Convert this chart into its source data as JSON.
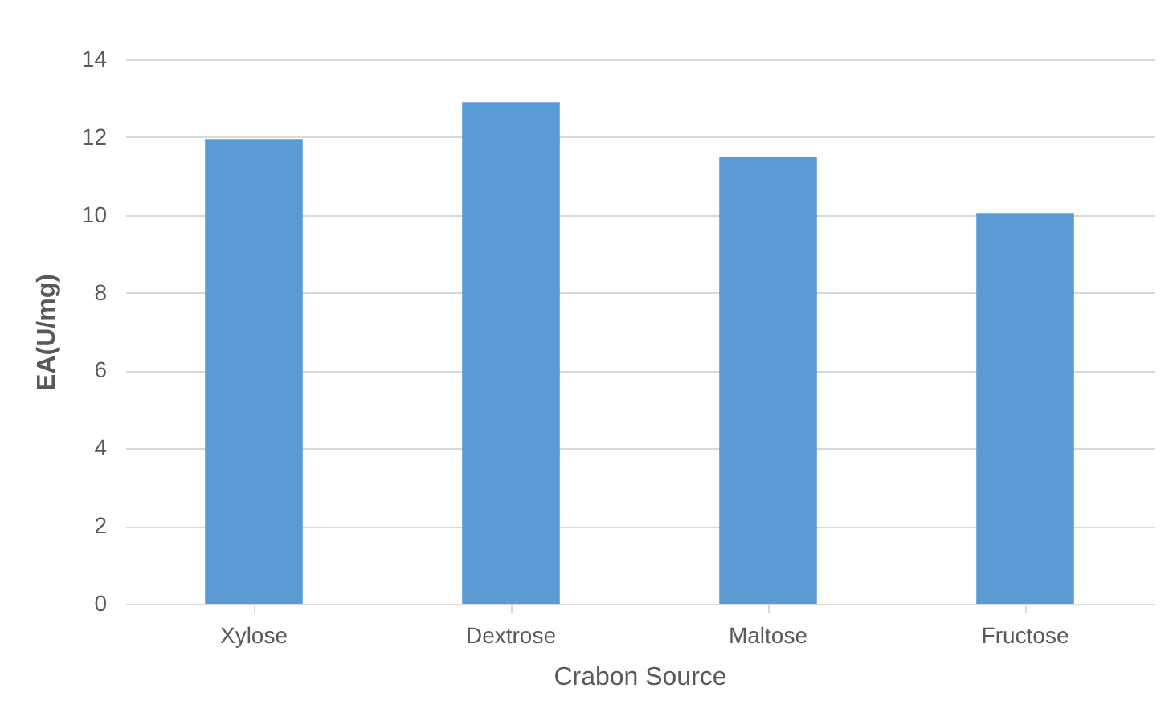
{
  "chart_data": {
    "type": "bar",
    "xlabel": "Crabon Source",
    "ylabel": "EA(U/mg)",
    "categories": [
      "Xylose",
      "Dextrose",
      "Maltose",
      "Fructose"
    ],
    "values": [
      11.95,
      12.9,
      11.5,
      10.05
    ],
    "color": "#5b9bd5",
    "ylim": [
      0,
      14
    ],
    "yticks": [
      0,
      2,
      4,
      6,
      8,
      10,
      12,
      14
    ],
    "grid": "y"
  }
}
